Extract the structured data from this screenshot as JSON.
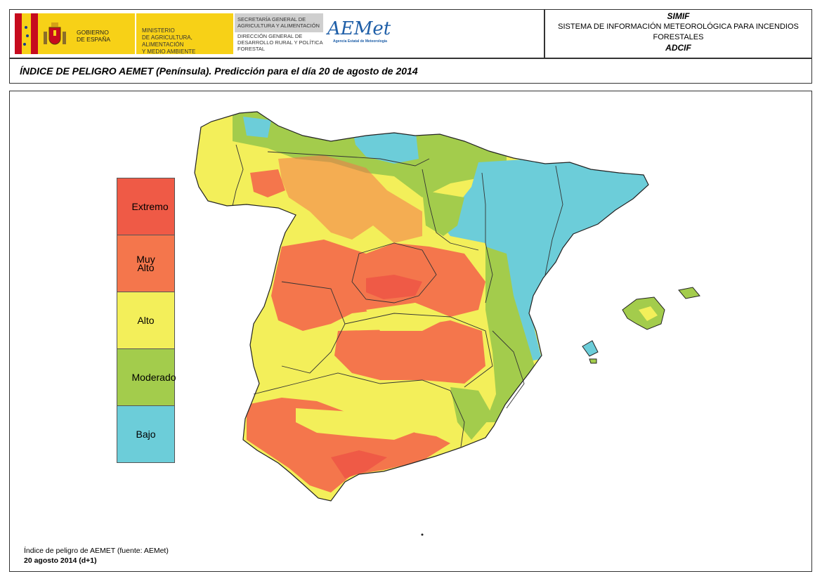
{
  "header": {
    "gov_line1": "GOBIERNO",
    "gov_line2": "DE ESPAÑA",
    "ministry_line1": "MINISTERIO",
    "ministry_line2": "DE AGRICULTURA, ALIMENTACIÓN",
    "ministry_line3": "Y MEDIO AMBIENTE",
    "secretaria_line1": "SECRETARÍA GENERAL DE",
    "secretaria_line2": "AGRICULTURA Y ALIMENTACIÓN",
    "direccion_line1": "DIRECCIÓN GENERAL DE",
    "direccion_line2": "DESARROLLO RURAL Y POLÍTICA",
    "direccion_line3": "FORESTAL",
    "aemet_logo": "AEMet",
    "aemet_subtitle": "Agencia Estatal de Meteorología"
  },
  "system": {
    "acronym": "SIMIF",
    "name_line1": "SISTEMA DE INFORMACIÓN METEOROLÓGICA PARA INCENDIOS",
    "name_line2": "FORESTALES",
    "unit": "ADCIF"
  },
  "title": "ÍNDICE DE PELIGRO AEMET (Península). Predicción para el día 20 de agosto de 2014",
  "legend": [
    {
      "label": "Extremo",
      "color": "#ef5a46"
    },
    {
      "label": "Muy Alto",
      "color": "#f4764c"
    },
    {
      "label": "Alto",
      "color": "#f3ef5a"
    },
    {
      "label": "Moderado",
      "color": "#a3cc4c"
    },
    {
      "label": "Bajo",
      "color": "#6ccdd9"
    }
  ],
  "footer": {
    "source": "Índice de peligro de AEMET (fuente: AEMet)",
    "date": "20 agosto 2014 (d+1)"
  }
}
